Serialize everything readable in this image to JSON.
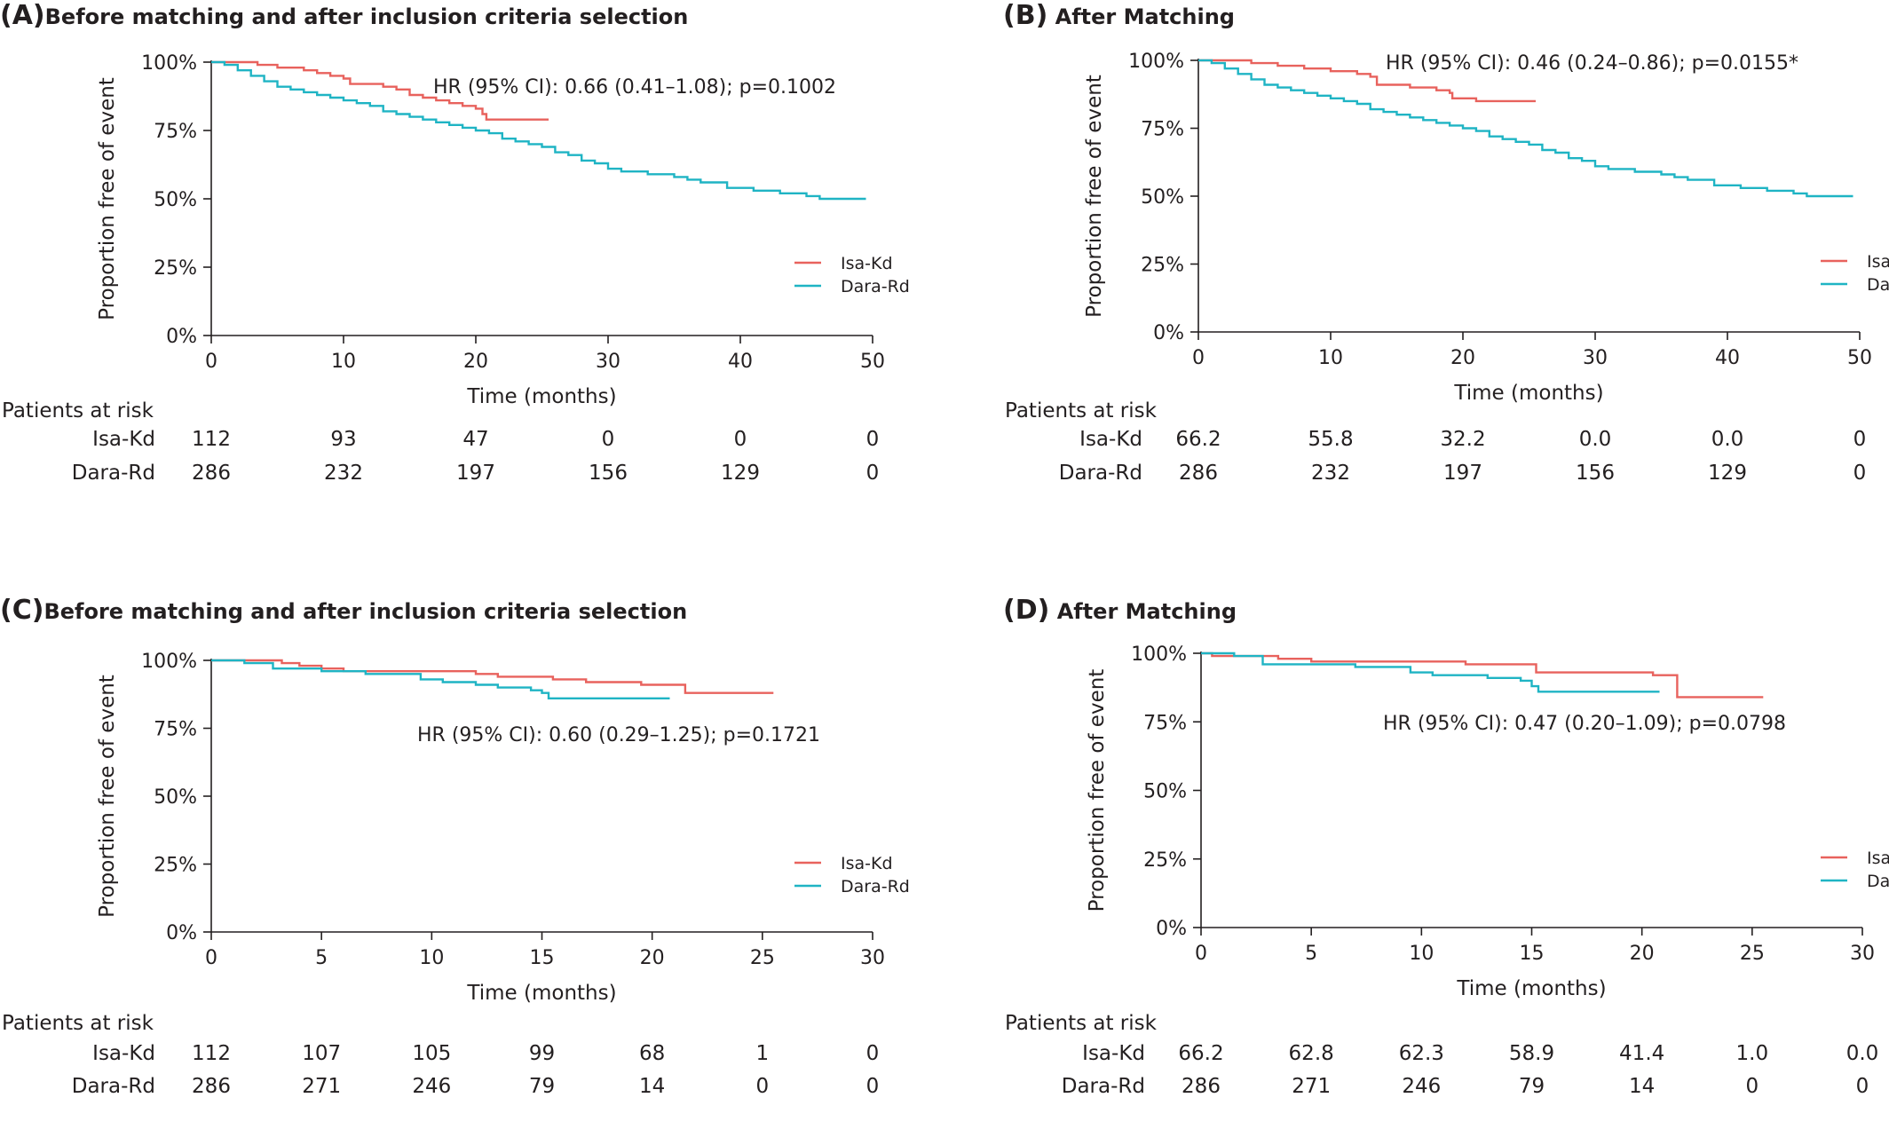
{
  "colors": {
    "isa": "#e8625d",
    "dara": "#1fb4c4",
    "axis": "#231f20"
  },
  "panels": [
    {
      "id": "A",
      "letter": "(A)",
      "title": "Before matching and after inclusion criteria selection",
      "hr_text": "HR (95% CI): 0.66 (0.41–1.08); p=0.1002",
      "risk_header": "Patients at risk",
      "chart_data": {
        "type": "line",
        "xlabel": "Time (months)",
        "ylabel": "Proportion free of event",
        "xlim": [
          0,
          50
        ],
        "ylim": [
          0,
          100
        ],
        "x_ticks": [
          "0",
          "10",
          "20",
          "30",
          "40",
          "50"
        ],
        "y_ticks": [
          "0%",
          "25%",
          "50%",
          "75%",
          "100%"
        ],
        "legend": "right",
        "series": [
          {
            "name": "Isa-Kd",
            "color": "#e8625d",
            "points": [
              [
                0,
                100
              ],
              [
                3.5,
                99
              ],
              [
                5,
                98
              ],
              [
                7,
                97
              ],
              [
                8,
                96
              ],
              [
                9,
                95
              ],
              [
                10,
                94
              ],
              [
                10.5,
                92
              ],
              [
                13,
                91
              ],
              [
                14,
                90
              ],
              [
                15,
                88
              ],
              [
                16,
                87
              ],
              [
                17,
                86
              ],
              [
                18,
                85
              ],
              [
                19,
                84
              ],
              [
                20,
                83
              ],
              [
                20.5,
                81
              ],
              [
                20.8,
                79
              ],
              [
                25.5,
                79
              ]
            ]
          },
          {
            "name": "Dara-Rd",
            "color": "#1fb4c4",
            "points": [
              [
                0,
                100
              ],
              [
                1,
                99
              ],
              [
                2,
                97
              ],
              [
                3,
                95
              ],
              [
                4,
                93
              ],
              [
                5,
                91
              ],
              [
                6,
                90
              ],
              [
                7,
                89
              ],
              [
                8,
                88
              ],
              [
                9,
                87
              ],
              [
                10,
                86
              ],
              [
                11,
                85
              ],
              [
                12,
                84
              ],
              [
                13,
                82
              ],
              [
                14,
                81
              ],
              [
                15,
                80
              ],
              [
                16,
                79
              ],
              [
                17,
                78
              ],
              [
                18,
                77
              ],
              [
                19,
                76
              ],
              [
                20,
                75
              ],
              [
                21,
                74
              ],
              [
                22,
                72
              ],
              [
                23,
                71
              ],
              [
                24,
                70
              ],
              [
                25,
                69
              ],
              [
                26,
                67
              ],
              [
                27,
                66
              ],
              [
                28,
                64
              ],
              [
                29,
                63
              ],
              [
                30,
                61
              ],
              [
                31,
                60
              ],
              [
                33,
                59
              ],
              [
                35,
                58
              ],
              [
                36,
                57
              ],
              [
                37,
                56
              ],
              [
                39,
                54
              ],
              [
                41,
                53
              ],
              [
                43,
                52
              ],
              [
                45,
                51
              ],
              [
                46,
                50
              ],
              [
                49.5,
                50
              ]
            ]
          }
        ]
      },
      "risk_table": {
        "x": [
          0,
          10,
          20,
          30,
          40,
          50
        ],
        "rows": [
          {
            "label": "Isa-Kd",
            "values": [
              "112",
              "93",
              "47",
              "0",
              "0",
              "0"
            ]
          },
          {
            "label": "Dara-Rd",
            "values": [
              "286",
              "232",
              "197",
              "156",
              "129",
              "0"
            ]
          }
        ]
      }
    },
    {
      "id": "B",
      "letter": "(B)",
      "title": "After Matching",
      "hr_text": "HR (95% CI): 0.46 (0.24–0.86); p=0.0155*",
      "risk_header": "Patients at risk",
      "chart_data": {
        "type": "line",
        "xlabel": "Time (months)",
        "ylabel": "Proportion free of event",
        "xlim": [
          0,
          50
        ],
        "ylim": [
          0,
          100
        ],
        "x_ticks": [
          "0",
          "10",
          "20",
          "30",
          "40",
          "50"
        ],
        "y_ticks": [
          "0%",
          "25%",
          "50%",
          "75%",
          "100%"
        ],
        "legend": "right",
        "series": [
          {
            "name": "Isa-Kd",
            "color": "#e8625d",
            "points": [
              [
                0,
                100
              ],
              [
                4,
                99
              ],
              [
                6,
                98
              ],
              [
                8,
                97
              ],
              [
                10,
                96
              ],
              [
                12,
                95
              ],
              [
                13,
                94
              ],
              [
                13.5,
                91
              ],
              [
                16,
                90
              ],
              [
                18,
                89
              ],
              [
                19,
                88
              ],
              [
                19.2,
                86
              ],
              [
                21,
                85
              ],
              [
                25.5,
                85
              ]
            ]
          },
          {
            "name": "Dara-Rd",
            "color": "#1fb4c4",
            "points": [
              [
                0,
                100
              ],
              [
                1,
                99
              ],
              [
                2,
                97
              ],
              [
                3,
                95
              ],
              [
                4,
                93
              ],
              [
                5,
                91
              ],
              [
                6,
                90
              ],
              [
                7,
                89
              ],
              [
                8,
                88
              ],
              [
                9,
                87
              ],
              [
                10,
                86
              ],
              [
                11,
                85
              ],
              [
                12,
                84
              ],
              [
                13,
                82
              ],
              [
                14,
                81
              ],
              [
                15,
                80
              ],
              [
                16,
                79
              ],
              [
                17,
                78
              ],
              [
                18,
                77
              ],
              [
                19,
                76
              ],
              [
                20,
                75
              ],
              [
                21,
                74
              ],
              [
                22,
                72
              ],
              [
                23,
                71
              ],
              [
                24,
                70
              ],
              [
                25,
                69
              ],
              [
                26,
                67
              ],
              [
                27,
                66
              ],
              [
                28,
                64
              ],
              [
                29,
                63
              ],
              [
                30,
                61
              ],
              [
                31,
                60
              ],
              [
                33,
                59
              ],
              [
                35,
                58
              ],
              [
                36,
                57
              ],
              [
                37,
                56
              ],
              [
                39,
                54
              ],
              [
                41,
                53
              ],
              [
                43,
                52
              ],
              [
                45,
                51
              ],
              [
                46,
                50
              ],
              [
                49.5,
                50
              ]
            ]
          }
        ]
      },
      "risk_table": {
        "x": [
          0,
          10,
          20,
          30,
          40,
          50
        ],
        "rows": [
          {
            "label": "Isa-Kd",
            "values": [
              "66.2",
              "55.8",
              "32.2",
              "0.0",
              "0.0",
              "0"
            ]
          },
          {
            "label": "Dara-Rd",
            "values": [
              "286",
              "232",
              "197",
              "156",
              "129",
              "0"
            ]
          }
        ]
      }
    },
    {
      "id": "C",
      "letter": "(C)",
      "title": "Before matching and after inclusion criteria selection",
      "hr_text": "HR (95% CI): 0.60 (0.29–1.25); p=0.1721",
      "risk_header": "Patients at risk",
      "chart_data": {
        "type": "line",
        "xlabel": "Time (months)",
        "ylabel": "Proportion free of event",
        "xlim": [
          0,
          30
        ],
        "ylim": [
          0,
          100
        ],
        "x_ticks": [
          "0",
          "5",
          "10",
          "15",
          "20",
          "25",
          "30"
        ],
        "y_ticks": [
          "0%",
          "25%",
          "50%",
          "75%",
          "100%"
        ],
        "legend": "right",
        "series": [
          {
            "name": "Isa-Kd",
            "color": "#e8625d",
            "points": [
              [
                0,
                100
              ],
              [
                3.2,
                99
              ],
              [
                4,
                98
              ],
              [
                5,
                97
              ],
              [
                6,
                96
              ],
              [
                7,
                96
              ],
              [
                8,
                96
              ],
              [
                9,
                96
              ],
              [
                11.5,
                96
              ],
              [
                12,
                95
              ],
              [
                13,
                94
              ],
              [
                15,
                94
              ],
              [
                15.5,
                93
              ],
              [
                17,
                92
              ],
              [
                19,
                92
              ],
              [
                19.5,
                91
              ],
              [
                21,
                91
              ],
              [
                21.5,
                88
              ],
              [
                25.5,
                88
              ]
            ]
          },
          {
            "name": "Dara-Rd",
            "color": "#1fb4c4",
            "points": [
              [
                0,
                100
              ],
              [
                1.5,
                99
              ],
              [
                2.5,
                99
              ],
              [
                2.8,
                97
              ],
              [
                5,
                96
              ],
              [
                6,
                96
              ],
              [
                7,
                95
              ],
              [
                9.3,
                95
              ],
              [
                9.5,
                93
              ],
              [
                10.5,
                92
              ],
              [
                12,
                91
              ],
              [
                13,
                90
              ],
              [
                14.5,
                89
              ],
              [
                15,
                88
              ],
              [
                15.3,
                86
              ],
              [
                20.8,
                86
              ]
            ]
          }
        ]
      },
      "risk_table": {
        "x": [
          0,
          5,
          10,
          15,
          20,
          25,
          30
        ],
        "rows": [
          {
            "label": "Isa-Kd",
            "values": [
              "112",
              "107",
              "105",
              "99",
              "68",
              "1",
              "0"
            ]
          },
          {
            "label": "Dara-Rd",
            "values": [
              "286",
              "271",
              "246",
              "79",
              "14",
              "0",
              "0"
            ]
          }
        ]
      }
    },
    {
      "id": "D",
      "letter": "(D)",
      "title": "After Matching",
      "hr_text": "HR (95% CI): 0.47 (0.20–1.09); p=0.0798",
      "risk_header": "Patients at risk",
      "chart_data": {
        "type": "line",
        "xlabel": "Time (months)",
        "ylabel": "Proportion free of event",
        "xlim": [
          0,
          30
        ],
        "ylim": [
          0,
          100
        ],
        "x_ticks": [
          "0",
          "5",
          "10",
          "15",
          "20",
          "25",
          "30"
        ],
        "y_ticks": [
          "0%",
          "25%",
          "50%",
          "75%",
          "100%"
        ],
        "legend": "right",
        "series": [
          {
            "name": "Isa-Kd",
            "color": "#e8625d",
            "points": [
              [
                0,
                100
              ],
              [
                0.5,
                99
              ],
              [
                1,
                99
              ],
              [
                3.5,
                98
              ],
              [
                4,
                98
              ],
              [
                5,
                97
              ],
              [
                7,
                97
              ],
              [
                11,
                97
              ],
              [
                12,
                96
              ],
              [
                15,
                96
              ],
              [
                15.2,
                93
              ],
              [
                20.5,
                92
              ],
              [
                21.5,
                92
              ],
              [
                21.6,
                84
              ],
              [
                25.5,
                84
              ]
            ]
          },
          {
            "name": "Dara-Rd",
            "color": "#1fb4c4",
            "points": [
              [
                0,
                100
              ],
              [
                1.5,
                99
              ],
              [
                2.5,
                99
              ],
              [
                2.8,
                96
              ],
              [
                5,
                96
              ],
              [
                6,
                96
              ],
              [
                7,
                95
              ],
              [
                9.3,
                95
              ],
              [
                9.5,
                93
              ],
              [
                10.5,
                92
              ],
              [
                12,
                92
              ],
              [
                13,
                91
              ],
              [
                14.5,
                90
              ],
              [
                15,
                88
              ],
              [
                15.3,
                86
              ],
              [
                20.8,
                86
              ]
            ]
          }
        ]
      },
      "risk_table": {
        "x": [
          0,
          5,
          10,
          15,
          20,
          25,
          30
        ],
        "rows": [
          {
            "label": "Isa-Kd",
            "values": [
              "66.2",
              "62.8",
              "62.3",
              "58.9",
              "41.4",
              "1.0",
              "0.0"
            ]
          },
          {
            "label": "Dara-Rd",
            "values": [
              "286",
              "271",
              "246",
              "79",
              "14",
              "0",
              "0"
            ]
          }
        ]
      }
    }
  ]
}
